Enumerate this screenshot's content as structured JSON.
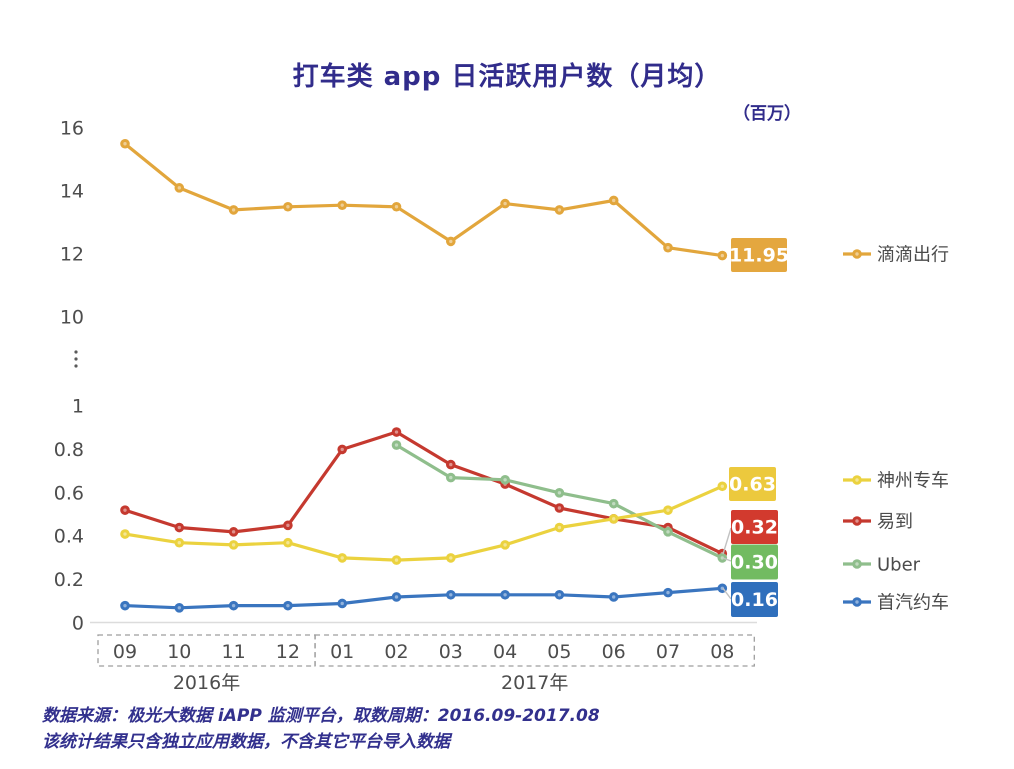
{
  "header": {
    "title": "打车类 app 日活跃用户数（月均）",
    "unit_label": "（百万）"
  },
  "footer": {
    "line1": "数据来源：极光大数据 iAPP 监测平台，取数周期：2016.09-2017.08",
    "line2": "该统计结果只含独立应用数据，不含其它平台导入数据"
  },
  "chart_data": {
    "type": "line",
    "broken_y_axis": true,
    "grid": false,
    "legend_position": "right",
    "x": {
      "categories": [
        "09",
        "10",
        "11",
        "12",
        "01",
        "02",
        "03",
        "04",
        "05",
        "06",
        "07",
        "08"
      ],
      "groups": [
        {
          "label": "2016年",
          "from": 0,
          "to": 3
        },
        {
          "label": "2017年",
          "from": 4,
          "to": 11
        }
      ]
    },
    "y": {
      "upper_ticks": [
        16,
        14,
        12,
        10
      ],
      "lower_ticks": [
        1,
        0.8,
        0.6,
        0.4,
        0.2,
        0
      ],
      "upper_range": [
        10,
        16
      ],
      "lower_range": [
        0,
        1
      ],
      "break_symbol": "⋮"
    },
    "series": [
      {
        "name": "滴滴出行",
        "slug": "didi",
        "segment": "upper",
        "color": "#E2A63C",
        "badge_color": "#E4A73F",
        "end_label": "11.95",
        "values": [
          15.5,
          14.1,
          13.4,
          13.5,
          13.55,
          13.5,
          12.4,
          13.6,
          13.4,
          13.7,
          12.2,
          11.95
        ]
      },
      {
        "name": "神州专车",
        "slug": "shenzhou",
        "segment": "lower",
        "color": "#EBD23F",
        "badge_color": "#ECC93D",
        "end_label": "0.63",
        "values": [
          0.41,
          0.37,
          0.36,
          0.37,
          0.3,
          0.29,
          0.3,
          0.36,
          0.44,
          0.48,
          0.52,
          0.63
        ]
      },
      {
        "name": "易到",
        "slug": "yidao",
        "segment": "lower",
        "color": "#C5392F",
        "badge_color": "#D23A2E",
        "end_label": "0.32",
        "values": [
          0.52,
          0.44,
          0.42,
          0.45,
          0.8,
          0.88,
          0.73,
          0.64,
          0.53,
          0.48,
          0.44,
          0.32
        ]
      },
      {
        "name": "Uber",
        "slug": "uber",
        "segment": "lower",
        "color": "#8FBE8C",
        "badge_color": "#72BB61",
        "end_label": "0.30",
        "values": [
          null,
          null,
          null,
          null,
          null,
          0.82,
          0.67,
          0.66,
          0.6,
          0.55,
          0.42,
          0.3
        ]
      },
      {
        "name": "首汽约车",
        "slug": "shouqi",
        "segment": "lower",
        "color": "#3A75BF",
        "badge_color": "#2F6FBC",
        "end_label": "0.16",
        "values": [
          0.08,
          0.07,
          0.08,
          0.08,
          0.09,
          0.12,
          0.13,
          0.13,
          0.13,
          0.12,
          0.14,
          0.16
        ]
      }
    ]
  }
}
